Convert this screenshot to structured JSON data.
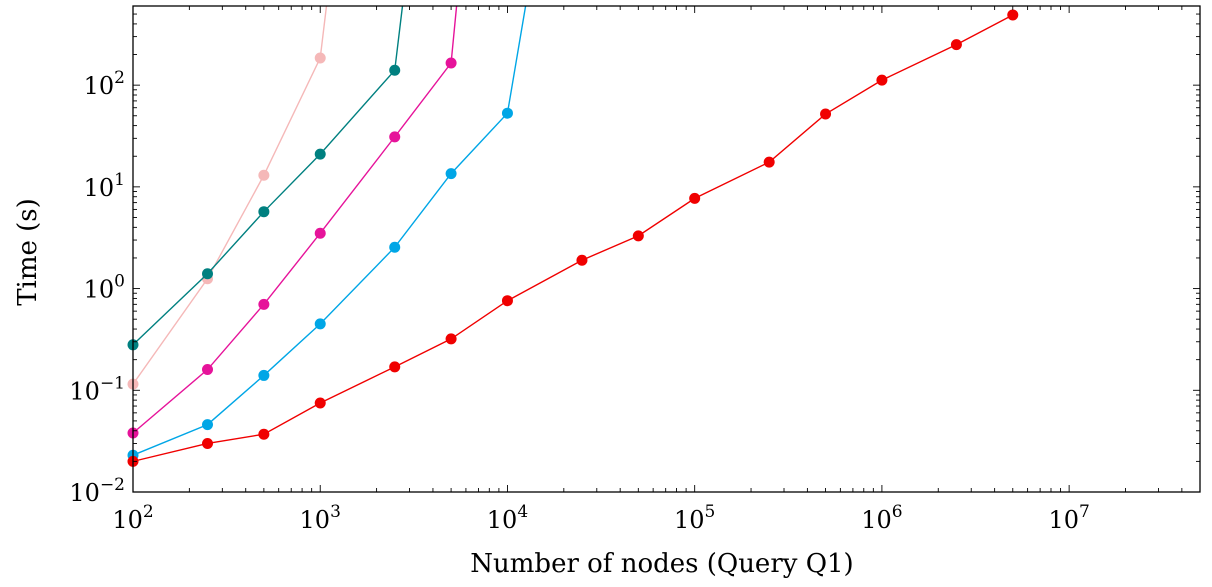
{
  "chart_data": {
    "type": "line",
    "title": "",
    "xlabel": "Number of nodes (Query Q1)",
    "ylabel": "Time (s)",
    "x_scale": "log",
    "y_scale": "log",
    "xlim": [
      100,
      50000000
    ],
    "ylim": [
      0.01,
      600
    ],
    "grid": false,
    "legend": "none",
    "x_ticks": [
      {
        "value": 100,
        "base": "10",
        "exp": "2"
      },
      {
        "value": 1000,
        "base": "10",
        "exp": "3"
      },
      {
        "value": 10000,
        "base": "10",
        "exp": "4"
      },
      {
        "value": 100000,
        "base": "10",
        "exp": "5"
      },
      {
        "value": 1000000,
        "base": "10",
        "exp": "6"
      },
      {
        "value": 10000000,
        "base": "10",
        "exp": "7"
      }
    ],
    "y_ticks": [
      {
        "value": 0.01,
        "base": "10",
        "exp": "−2"
      },
      {
        "value": 0.1,
        "base": "10",
        "exp": "−1"
      },
      {
        "value": 1,
        "base": "10",
        "exp": "0"
      },
      {
        "value": 10,
        "base": "10",
        "exp": "1"
      },
      {
        "value": 100,
        "base": "10",
        "exp": "2"
      }
    ],
    "series": [
      {
        "color": "#f5b8b8",
        "x": [
          100,
          250,
          500,
          1000
        ],
        "y": [
          0.115,
          1.25,
          13,
          185
        ],
        "continues_to": [
          1080,
          600
        ]
      },
      {
        "color": "#008080",
        "x": [
          100,
          250,
          500,
          1000,
          2500
        ],
        "y": [
          0.28,
          1.4,
          5.7,
          21,
          140
        ],
        "continues_to": [
          2750,
          600
        ]
      },
      {
        "color": "#e6139a",
        "x": [
          100,
          250,
          500,
          1000,
          2500,
          5000
        ],
        "y": [
          0.038,
          0.16,
          0.7,
          3.5,
          31,
          165
        ],
        "continues_to": [
          5350,
          600
        ]
      },
      {
        "color": "#00a6e6",
        "x": [
          100,
          250,
          500,
          1000,
          2500,
          5000,
          10000
        ],
        "y": [
          0.023,
          0.046,
          0.14,
          0.45,
          2.55,
          13.5,
          53
        ],
        "continues_to": [
          12500,
          600
        ]
      },
      {
        "color": "#f00000",
        "x": [
          100,
          250,
          500,
          1000,
          2500,
          5000,
          10000,
          25000,
          50000,
          100000,
          250000,
          500000,
          1000000,
          2500000,
          5000000
        ],
        "y": [
          0.02,
          0.03,
          0.037,
          0.075,
          0.17,
          0.32,
          0.76,
          1.9,
          3.3,
          7.7,
          17.5,
          52,
          112,
          250,
          490
        ]
      }
    ]
  }
}
